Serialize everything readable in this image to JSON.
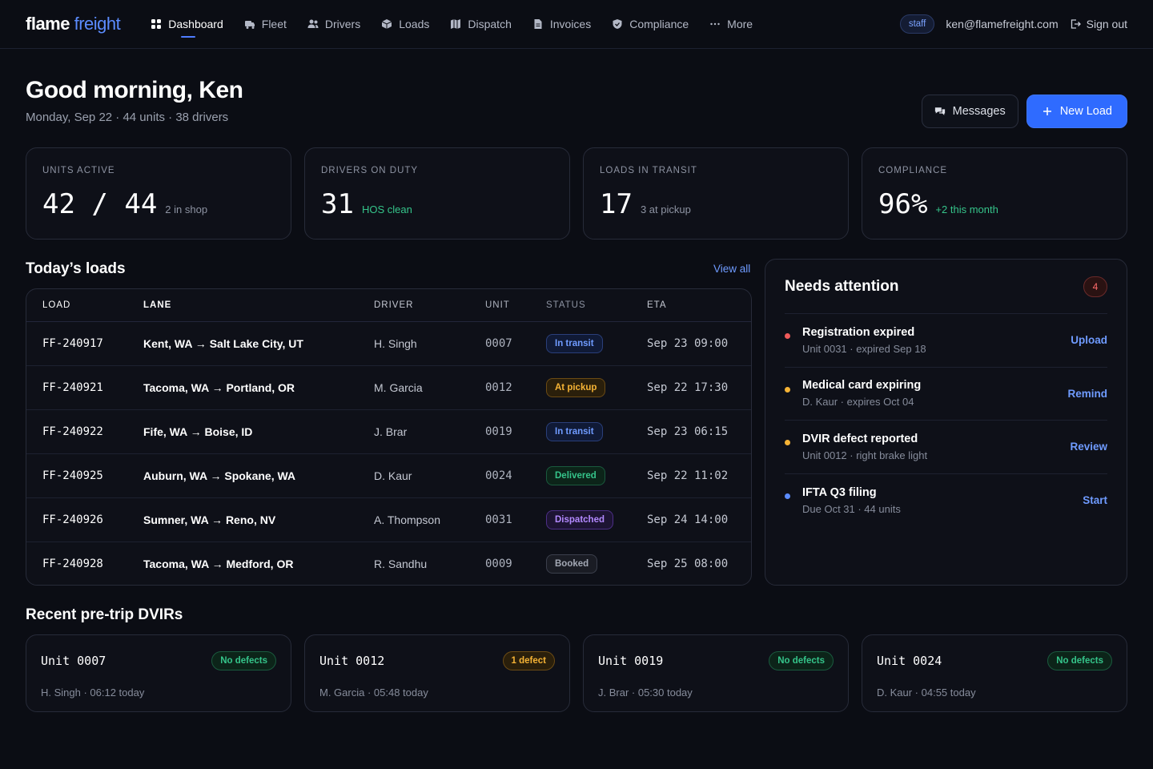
{
  "brand": {
    "name": "flame",
    "accent": "freight"
  },
  "nav": {
    "items": [
      {
        "label": "Dashboard",
        "icon": "grid-icon",
        "active": true
      },
      {
        "label": "Fleet",
        "icon": "truck-icon",
        "active": false
      },
      {
        "label": "Drivers",
        "icon": "users-icon",
        "active": false
      },
      {
        "label": "Loads",
        "icon": "box-icon",
        "active": false
      },
      {
        "label": "Dispatch",
        "icon": "map-icon",
        "active": false
      },
      {
        "label": "Invoices",
        "icon": "file-icon",
        "active": false
      },
      {
        "label": "Compliance",
        "icon": "shield-icon",
        "active": false
      },
      {
        "label": "More",
        "icon": "ellipsis-icon",
        "active": false
      }
    ],
    "role_badge": "staff",
    "email": "ken@flamefreight.com",
    "signout": "Sign out"
  },
  "greeting": {
    "title": "Good morning, Ken",
    "subtitle": "Monday, Sep 22 · 44 units · 38 drivers"
  },
  "actions": {
    "messages": "Messages",
    "new_load": "New Load"
  },
  "stats": [
    {
      "label": "UNITS ACTIVE",
      "value": "42 / 44",
      "sub": "2 in shop",
      "tone": "muted"
    },
    {
      "label": "DRIVERS ON DUTY",
      "value": "31",
      "sub": "HOS clean",
      "tone": "green"
    },
    {
      "label": "LOADS IN TRANSIT",
      "value": "17",
      "sub": "3 at pickup",
      "tone": "muted"
    },
    {
      "label": "COMPLIANCE",
      "value": "96%",
      "sub": "+2 this month",
      "tone": "green"
    }
  ],
  "loads": {
    "title": "Today’s loads",
    "view_all": "View all",
    "columns": [
      "LOAD",
      "LANE",
      "DRIVER",
      "UNIT",
      "STATUS",
      "ETA"
    ],
    "rows": [
      {
        "id": "FF-240917",
        "lane": "Kent, WA → Salt Lake City, UT",
        "driver": "H. Singh",
        "unit": "0007",
        "status": "In transit",
        "status_kind": "transit",
        "eta": "Sep 23 09:00"
      },
      {
        "id": "FF-240921",
        "lane": "Tacoma, WA → Portland, OR",
        "driver": "M. Garcia",
        "unit": "0012",
        "status": "At pickup",
        "status_kind": "pickup",
        "eta": "Sep 22 17:30"
      },
      {
        "id": "FF-240922",
        "lane": "Fife, WA → Boise, ID",
        "driver": "J. Brar",
        "unit": "0019",
        "status": "In transit",
        "status_kind": "transit",
        "eta": "Sep 23 06:15"
      },
      {
        "id": "FF-240925",
        "lane": "Auburn, WA → Spokane, WA",
        "driver": "D. Kaur",
        "unit": "0024",
        "status": "Delivered",
        "status_kind": "delivered",
        "eta": "Sep 22 11:02"
      },
      {
        "id": "FF-240926",
        "lane": "Sumner, WA → Reno, NV",
        "driver": "A. Thompson",
        "unit": "0031",
        "status": "Dispatched",
        "status_kind": "dispatched",
        "eta": "Sep 24 14:00"
      },
      {
        "id": "FF-240928",
        "lane": "Tacoma, WA → Medford, OR",
        "driver": "R. Sandhu",
        "unit": "0009",
        "status": "Booked",
        "status_kind": "booked",
        "eta": "Sep 25 08:00"
      }
    ]
  },
  "attention": {
    "title": "Needs attention",
    "count": "4",
    "items": [
      {
        "title": "Registration expired",
        "sub": "Unit 0031 · expired Sep 18",
        "action": "Upload",
        "dot": "#ef5a5a"
      },
      {
        "title": "Medical card expiring",
        "sub": "D. Kaur · expires Oct 04",
        "action": "Remind",
        "dot": "#f5b335"
      },
      {
        "title": "DVIR defect reported",
        "sub": "Unit 0012 · right brake light",
        "action": "Review",
        "dot": "#f5b335"
      },
      {
        "title": "IFTA Q3 filing",
        "sub": "Due Oct 31 · 44 units",
        "action": "Start",
        "dot": "#5b8cff"
      }
    ]
  },
  "dvirs": {
    "title": "Recent pre-trip DVIRs",
    "items": [
      {
        "unit": "Unit 0007",
        "tag": "No defects",
        "tag_kind": "ok",
        "meta": "H. Singh · 06:12 today"
      },
      {
        "unit": "Unit 0012",
        "tag": "1 defect",
        "tag_kind": "warn",
        "meta": "M. Garcia · 05:48 today"
      },
      {
        "unit": "Unit 0019",
        "tag": "No defects",
        "tag_kind": "ok",
        "meta": "J. Brar · 05:30 today"
      },
      {
        "unit": "Unit 0024",
        "tag": "No defects",
        "tag_kind": "ok",
        "meta": "D. Kaur · 04:55 today"
      }
    ]
  }
}
